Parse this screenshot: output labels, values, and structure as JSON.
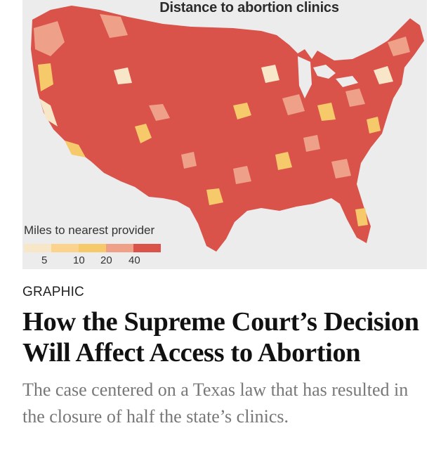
{
  "map": {
    "title": "Distance to abortion clinics",
    "legend_title": "Miles to nearest provider",
    "legend_ticks": [
      "5",
      "10",
      "20",
      "40"
    ],
    "scale_colors": [
      "#f7e6c7",
      "#fbd38f",
      "#f6c96a",
      "#eea089",
      "#d9534a"
    ],
    "land_color": "#d9534a",
    "background_color": "#ececec"
  },
  "article": {
    "kicker": "GRAPHIC",
    "headline": "How the Supreme Court’s Decision Will Affect Access to Abortion",
    "summary": "The case centered on a Texas law that has resulted in the closure of half the state’s clinics."
  }
}
